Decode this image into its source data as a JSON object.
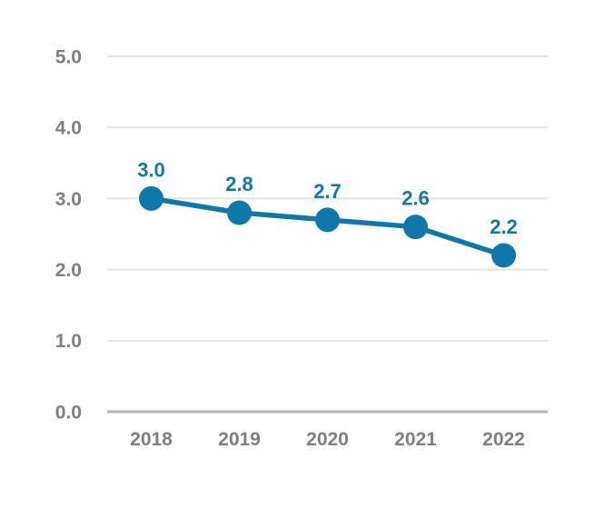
{
  "chart_data": {
    "type": "line",
    "title": "",
    "xlabel": "",
    "ylabel": "",
    "categories": [
      "2018",
      "2019",
      "2020",
      "2021",
      "2022"
    ],
    "series": [
      {
        "name": "value",
        "values": [
          3.0,
          2.8,
          2.7,
          2.6,
          2.2
        ],
        "point_labels": [
          "3.0",
          "2.8",
          "2.7",
          "2.6",
          "2.2"
        ]
      }
    ],
    "ylim": [
      0,
      5
    ],
    "ytick_values": [
      0,
      1,
      2,
      3,
      4,
      5
    ],
    "ytick_labels": [
      "0.0",
      "1.0",
      "2.0",
      "3.0",
      "4.0",
      "5.0"
    ],
    "grid": true,
    "legend": false,
    "legend_position": "none",
    "colors": {
      "line": "#0F77A9",
      "marker": "#0F77A9",
      "data_label": "#0F77A9",
      "axis_tick_label": "#7F7F7F",
      "gridline": "#E3E3E3",
      "axis_line": "#B5B5B5",
      "background": "#FFFFFF"
    }
  }
}
